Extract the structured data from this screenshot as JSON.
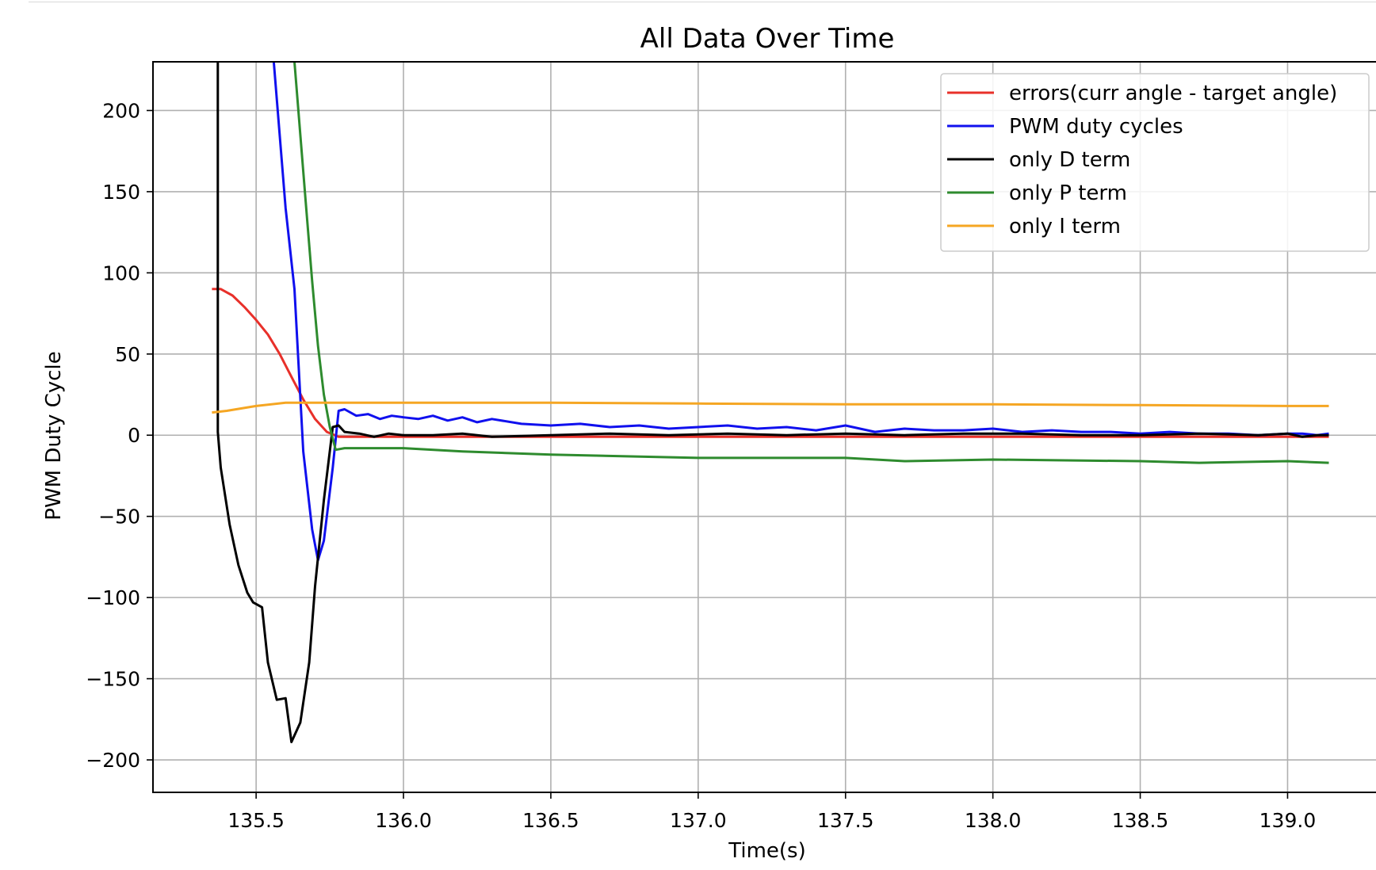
{
  "chart_data": {
    "type": "line",
    "title": "All Data Over Time",
    "xlabel": "Time(s)",
    "ylabel": "PWM Duty Cycle",
    "xlim": [
      135.15,
      139.3
    ],
    "ylim": [
      -220,
      230
    ],
    "xticks": [
      135.5,
      136.0,
      136.5,
      137.0,
      137.5,
      138.0,
      138.5,
      139.0
    ],
    "xtick_labels": [
      "135.5",
      "136.0",
      "136.5",
      "137.0",
      "137.5",
      "138.0",
      "138.5",
      "139.0"
    ],
    "yticks": [
      200,
      150,
      100,
      50,
      0,
      -50,
      -100,
      -150,
      -200
    ],
    "ytick_labels": [
      "200",
      "150",
      "100",
      "50",
      "0",
      "−50",
      "−100",
      "−150",
      "−200"
    ],
    "grid": true,
    "legend_position": "top-right",
    "series": [
      {
        "name": "errors(curr angle - target angle)",
        "color": "#e8302a",
        "x": [
          135.35,
          135.38,
          135.42,
          135.46,
          135.5,
          135.54,
          135.58,
          135.62,
          135.66,
          135.7,
          135.74,
          135.78,
          135.82,
          135.9,
          136.0,
          136.2,
          136.5,
          137.0,
          137.5,
          138.0,
          138.5,
          139.0,
          139.14
        ],
        "y": [
          90,
          90,
          86,
          79,
          71,
          62,
          50,
          36,
          22,
          10,
          2,
          -1,
          -1,
          -1,
          -1,
          -1,
          -1,
          -1,
          -1,
          -1,
          -1,
          -1,
          -1
        ]
      },
      {
        "name": "PWM duty cycles",
        "color": "#1010ee",
        "x": [
          135.56,
          135.6,
          135.63,
          135.66,
          135.69,
          135.71,
          135.73,
          135.76,
          135.78,
          135.8,
          135.84,
          135.88,
          135.92,
          135.96,
          136.0,
          136.05,
          136.1,
          136.15,
          136.2,
          136.25,
          136.3,
          136.4,
          136.5,
          136.6,
          136.7,
          136.8,
          136.9,
          137.0,
          137.1,
          137.2,
          137.3,
          137.4,
          137.5,
          137.6,
          137.7,
          137.8,
          137.9,
          138.0,
          138.1,
          138.2,
          138.3,
          138.4,
          138.5,
          138.6,
          138.7,
          138.8,
          138.9,
          139.0,
          139.05,
          139.1,
          139.14
        ],
        "y": [
          230,
          140,
          90,
          -10,
          -58,
          -77,
          -65,
          -20,
          15,
          16,
          12,
          13,
          10,
          12,
          11,
          10,
          12,
          9,
          11,
          8,
          10,
          7,
          6,
          7,
          5,
          6,
          4,
          5,
          6,
          4,
          5,
          3,
          6,
          2,
          4,
          3,
          3,
          4,
          2,
          3,
          2,
          2,
          1,
          2,
          1,
          1,
          0,
          1,
          1,
          0,
          1
        ]
      },
      {
        "name": "only D term",
        "color": "#000000",
        "x": [
          135.37,
          135.37,
          135.38,
          135.41,
          135.44,
          135.47,
          135.49,
          135.52,
          135.54,
          135.57,
          135.6,
          135.62,
          135.65,
          135.68,
          135.7,
          135.73,
          135.76,
          135.78,
          135.8,
          135.85,
          135.9,
          135.95,
          136.0,
          136.1,
          136.2,
          136.3,
          136.5,
          136.7,
          136.9,
          137.1,
          137.3,
          137.5,
          137.7,
          137.9,
          138.1,
          138.3,
          138.5,
          138.7,
          138.9,
          139.0,
          139.05,
          139.1,
          139.14
        ],
        "y": [
          230,
          2,
          -20,
          -55,
          -80,
          -97,
          -103,
          -106,
          -140,
          -163,
          -162,
          -189,
          -177,
          -140,
          -93,
          -40,
          5,
          6,
          2,
          1,
          -1,
          1,
          0,
          0,
          1,
          -1,
          0,
          1,
          0,
          1,
          0,
          1,
          0,
          1,
          1,
          0,
          0,
          1,
          0,
          1,
          -1,
          0,
          0
        ]
      },
      {
        "name": "only P term",
        "color": "#2e8b2e",
        "x": [
          135.63,
          135.65,
          135.67,
          135.69,
          135.71,
          135.73,
          135.75,
          135.77,
          135.8,
          135.9,
          136.0,
          136.2,
          136.5,
          137.0,
          137.5,
          137.7,
          138.0,
          138.5,
          138.7,
          139.0,
          139.14
        ],
        "y": [
          230,
          185,
          140,
          95,
          55,
          25,
          5,
          -9,
          -8,
          -8,
          -8,
          -10,
          -12,
          -14,
          -14,
          -16,
          -15,
          -16,
          -17,
          -16,
          -17
        ]
      },
      {
        "name": "only I term",
        "color": "#f5a623",
        "x": [
          135.35,
          135.4,
          135.5,
          135.6,
          135.7,
          135.8,
          136.0,
          136.5,
          137.0,
          137.5,
          138.0,
          138.5,
          139.0,
          139.14
        ],
        "y": [
          14,
          15,
          18,
          20,
          20,
          20,
          20,
          20,
          19.5,
          19,
          19,
          18.5,
          18,
          18
        ]
      }
    ]
  }
}
